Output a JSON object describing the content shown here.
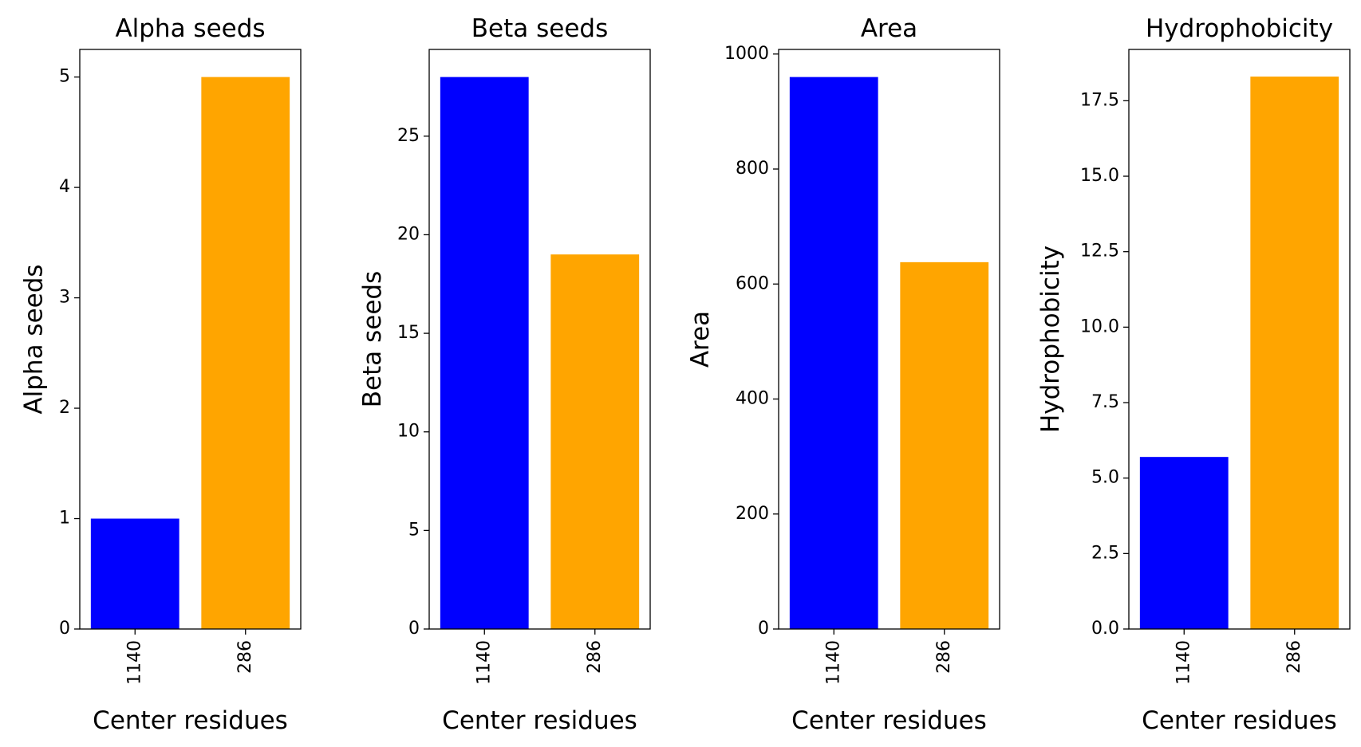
{
  "chart_data": [
    {
      "type": "bar",
      "title": "Alpha seeds",
      "xlabel": "Center residues",
      "ylabel": "Alpha seeds",
      "categories": [
        "1140",
        "286"
      ],
      "values": [
        1,
        5
      ],
      "colors": [
        "#0000ff",
        "#ffa500"
      ],
      "ylim": [
        0,
        5.25
      ],
      "yticks": [
        0,
        1,
        2,
        3,
        4,
        5
      ],
      "ytick_labels": [
        "0",
        "1",
        "2",
        "3",
        "4",
        "5"
      ],
      "grid": false
    },
    {
      "type": "bar",
      "title": "Beta seeds",
      "xlabel": "Center residues",
      "ylabel": "Beta seeds",
      "categories": [
        "1140",
        "286"
      ],
      "values": [
        28,
        19
      ],
      "colors": [
        "#0000ff",
        "#ffa500"
      ],
      "ylim": [
        0,
        29.4
      ],
      "yticks": [
        0,
        5,
        10,
        15,
        20,
        25
      ],
      "ytick_labels": [
        "0",
        "5",
        "10",
        "15",
        "20",
        "25"
      ],
      "grid": false
    },
    {
      "type": "bar",
      "title": "Area",
      "xlabel": "Center residues",
      "ylabel": "Area",
      "categories": [
        "1140",
        "286"
      ],
      "values": [
        960,
        638
      ],
      "colors": [
        "#0000ff",
        "#ffa500"
      ],
      "ylim": [
        0,
        1008
      ],
      "yticks": [
        0,
        200,
        400,
        600,
        800,
        1000
      ],
      "ytick_labels": [
        "0",
        "200",
        "400",
        "600",
        "800",
        "1000"
      ],
      "grid": false
    },
    {
      "type": "bar",
      "title": "Hydrophobicity",
      "xlabel": "Center residues",
      "ylabel": "Hydrophobicity",
      "categories": [
        "1140",
        "286"
      ],
      "values": [
        5.7,
        18.3
      ],
      "colors": [
        "#0000ff",
        "#ffa500"
      ],
      "ylim": [
        0,
        19.2
      ],
      "yticks": [
        0,
        2.5,
        5,
        7.5,
        10,
        12.5,
        15,
        17.5
      ],
      "ytick_labels": [
        "0.0",
        "2.5",
        "5.0",
        "7.5",
        "10.0",
        "12.5",
        "15.0",
        "17.5"
      ],
      "grid": false
    }
  ]
}
